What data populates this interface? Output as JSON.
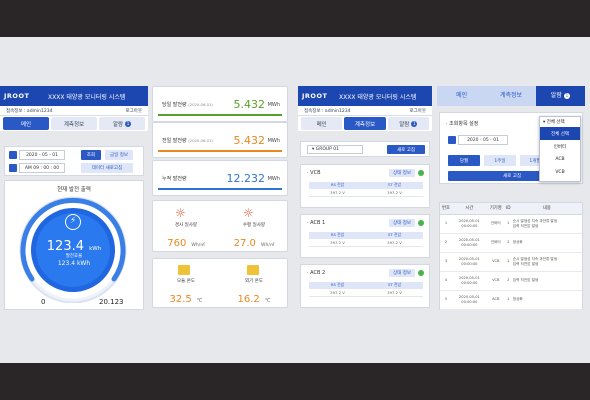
{
  "app": {
    "logo": "JROOT",
    "title": "XXXX 태양광 모니터링 시스템",
    "user_line": "접속정보 : admin1234",
    "logout": "로그아웃"
  },
  "tabs": {
    "main": "메인",
    "measure": "계측정보",
    "alarm": "알람",
    "alarm_count": "1"
  },
  "panel1": {
    "date": "2020 - 05 - 01",
    "query": "조회",
    "load": "금일 정보",
    "time": "AM 09 : 00 : 00",
    "realtime": "데이터 새로고침",
    "gauge_title": "현재 발전 출력",
    "gauge_value": "123.4",
    "gauge_unit": "kWh",
    "gen_label": "발전효율",
    "gen_value": "123.4",
    "gen_unit": "kWh",
    "min": "0",
    "max": "20.123"
  },
  "metrics": [
    {
      "label": "당일 발전량",
      "date": "(2020.06.01)",
      "value": "5.432",
      "unit": "MWh",
      "color": "#5aa02c"
    },
    {
      "label": "전일 발전량",
      "date": "(2020.06.01)",
      "value": "5.432",
      "unit": "MWh",
      "color": "#e8891f"
    },
    {
      "label": "누적 발전량",
      "date": "",
      "value": "12.232",
      "unit": "MWh",
      "color": "#2f74d0"
    }
  ],
  "weather": {
    "solar_h_label": "경사 일사량",
    "solar_h_value": "760",
    "solar_h_unit": "Wh/㎡",
    "solar_v_label": "수평 일사량",
    "solar_v_value": "27.0",
    "solar_v_unit": "Wh/㎡",
    "module_label": "모듈 온도",
    "module_value": "32.5",
    "module_unit": "℃",
    "outdoor_label": "외기 온도",
    "outdoor_value": "16.2",
    "outdoor_unit": "℃"
  },
  "panel3": {
    "group": "GROUP 01",
    "refresh": "새로 고침",
    "detail": "상태 정보",
    "col1": "RS 전압",
    "col2": "ST 전압",
    "val": "397.2 V",
    "units": [
      {
        "name": "· VCB"
      },
      {
        "name": "· ACB 1"
      },
      {
        "name": "· ACB 2"
      }
    ]
  },
  "panel4": {
    "title": "· 조회항목 설정",
    "select": "전체 선택",
    "date": "2020 - 05 - 01",
    "b1": "당월",
    "b2": "1주일",
    "b3": "1개월",
    "refresh": "새로 고침",
    "dropdown": [
      "전체 선택",
      "인버터",
      "ACB",
      "VCB"
    ],
    "headers": [
      "번호",
      "시간",
      "기기명",
      "ID",
      "내용"
    ],
    "rows": [
      [
        "1",
        "2020-05-01\n00:00:00",
        "인버터",
        "1",
        "순시 발생성 지속 과전류 발생\n입력 저전압 발생"
      ],
      [
        "2",
        "2020-05-01\n00:00:00",
        "인버터",
        "2",
        "정상화"
      ],
      [
        "3",
        "2020-05-01\n00:00:00",
        "VCB",
        "1",
        "순시 발생성 지속 과전류 발생\n입력 저전압 발생"
      ],
      [
        "4",
        "2020-05-01\n00:00:00",
        "VCB",
        "2",
        "입력 저전압 발생"
      ],
      [
        "5",
        "2020-05-01\n00:00:00",
        "ACB",
        "1",
        "정상화"
      ]
    ]
  }
}
